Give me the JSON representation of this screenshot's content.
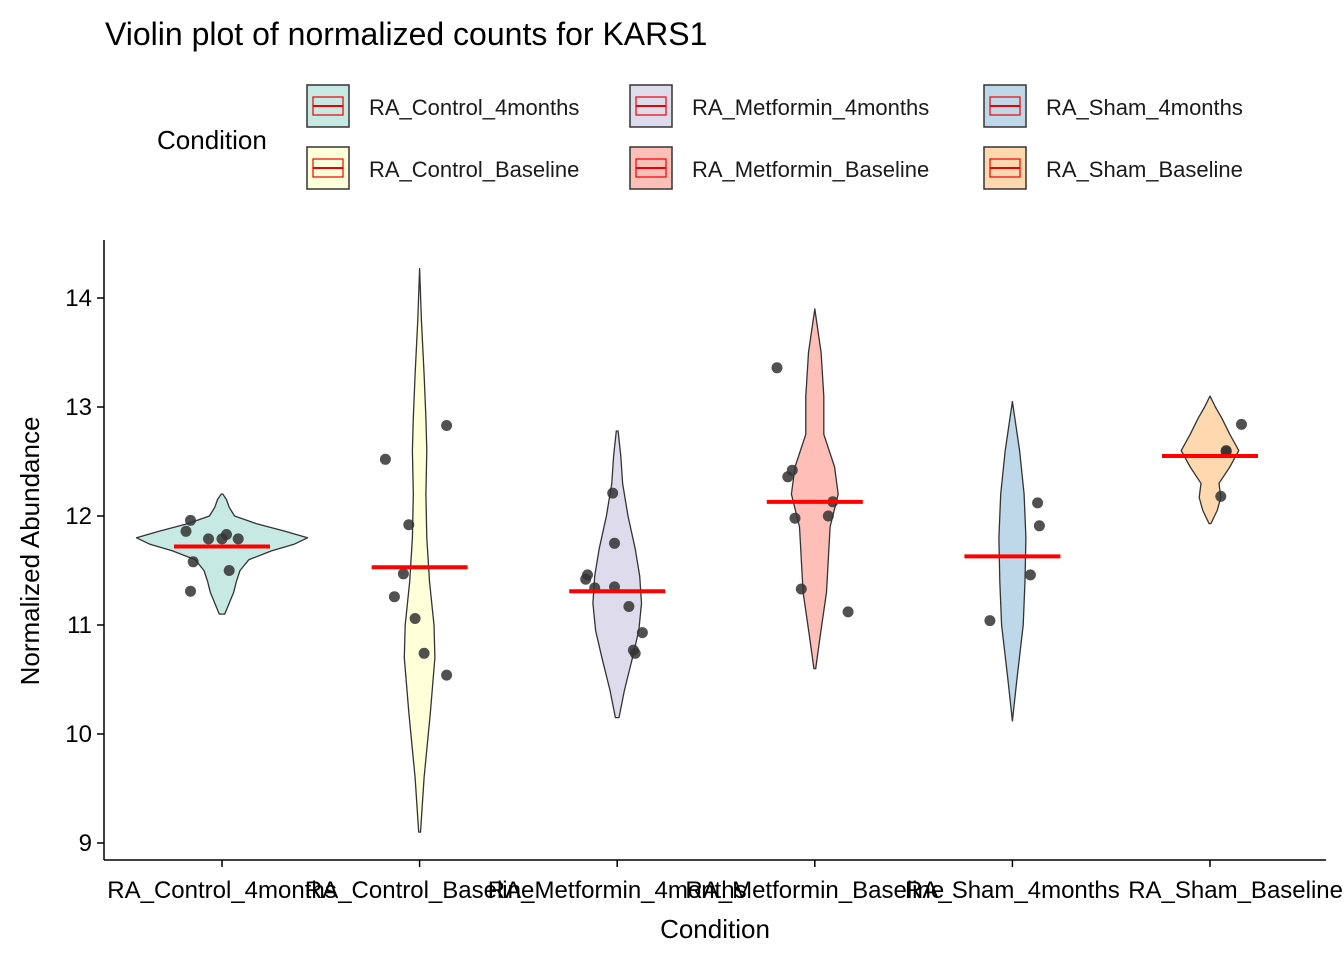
{
  "chart_data": {
    "type": "violin",
    "title": "Violin plot of normalized counts for KARS1",
    "xlabel": "Condition",
    "ylabel": "Normalized Abundance",
    "ylim": [
      8.9,
      14.5
    ],
    "yticks": [
      9,
      10,
      11,
      12,
      13,
      14
    ],
    "legend": {
      "title": "Condition",
      "position": "top",
      "entries": [
        {
          "name": "RA_Control_4months",
          "color": "#8DD3C7"
        },
        {
          "name": "RA_Metformin_4months",
          "color": "#BEBADA"
        },
        {
          "name": "RA_Sham_4months",
          "color": "#80B1D3"
        },
        {
          "name": "RA_Control_Baseline",
          "color": "#FFFFB3"
        },
        {
          "name": "RA_Metformin_Baseline",
          "color": "#FB8072"
        },
        {
          "name": "RA_Sham_Baseline",
          "color": "#FDB462"
        }
      ]
    },
    "median_line_color": "#FF0000",
    "point_color": "#333333",
    "categories": [
      "RA_Control_4months",
      "RA_Control_Baseline",
      "RA_Metformin_4months",
      "RA_Metformin_Baseline",
      "RA_Sham_4months",
      "RA_Sham_Baseline"
    ],
    "groups": [
      {
        "name": "RA_Control_4months",
        "color": "#8DD3C7",
        "median": 11.72,
        "points": [
          [
            -0.4,
            11.86
          ],
          [
            -0.35,
            11.96
          ],
          [
            -0.32,
            11.58
          ],
          [
            -0.35,
            11.31
          ],
          [
            -0.15,
            11.79
          ],
          [
            0.0,
            11.79
          ],
          [
            0.05,
            11.83
          ],
          [
            0.08,
            11.5
          ],
          [
            0.18,
            11.79
          ]
        ],
        "density": [
          [
            11.1,
            0.03
          ],
          [
            11.2,
            0.08
          ],
          [
            11.3,
            0.13
          ],
          [
            11.4,
            0.16
          ],
          [
            11.5,
            0.2
          ],
          [
            11.6,
            0.3
          ],
          [
            11.68,
            0.55
          ],
          [
            11.74,
            0.8
          ],
          [
            11.8,
            0.95
          ],
          [
            11.86,
            0.7
          ],
          [
            11.93,
            0.38
          ],
          [
            12.0,
            0.14
          ],
          [
            12.08,
            0.08
          ],
          [
            12.15,
            0.05
          ],
          [
            12.2,
            0.01
          ]
        ]
      },
      {
        "name": "RA_Control_Baseline",
        "color": "#FFFFB3",
        "median": 11.53,
        "points": [
          [
            -0.38,
            12.52
          ],
          [
            -0.28,
            11.26
          ],
          [
            -0.18,
            11.47
          ],
          [
            -0.12,
            11.92
          ],
          [
            -0.05,
            11.06
          ],
          [
            0.05,
            10.74
          ],
          [
            0.3,
            12.83
          ],
          [
            0.3,
            10.54
          ]
        ],
        "density": [
          [
            9.1,
            0.01
          ],
          [
            9.6,
            0.05
          ],
          [
            10.2,
            0.12
          ],
          [
            10.7,
            0.17
          ],
          [
            11.0,
            0.16
          ],
          [
            11.4,
            0.11
          ],
          [
            11.8,
            0.08
          ],
          [
            12.2,
            0.07
          ],
          [
            12.6,
            0.08
          ],
          [
            12.9,
            0.07
          ],
          [
            13.3,
            0.05
          ],
          [
            13.8,
            0.02
          ],
          [
            14.27,
            0.0
          ]
        ]
      },
      {
        "name": "RA_Metformin_4months",
        "color": "#BEBADA",
        "median": 11.31,
        "points": [
          [
            -0.35,
            11.42
          ],
          [
            -0.33,
            11.46
          ],
          [
            -0.25,
            11.34
          ],
          [
            -0.05,
            12.21
          ],
          [
            -0.03,
            11.75
          ],
          [
            -0.03,
            11.35
          ],
          [
            0.13,
            11.17
          ],
          [
            0.18,
            10.77
          ],
          [
            0.2,
            10.74
          ],
          [
            0.28,
            10.93
          ]
        ],
        "density": [
          [
            10.15,
            0.02
          ],
          [
            10.4,
            0.08
          ],
          [
            10.7,
            0.17
          ],
          [
            10.95,
            0.24
          ],
          [
            11.2,
            0.27
          ],
          [
            11.45,
            0.25
          ],
          [
            11.7,
            0.2
          ],
          [
            12.0,
            0.12
          ],
          [
            12.3,
            0.06
          ],
          [
            12.55,
            0.04
          ],
          [
            12.78,
            0.01
          ]
        ]
      },
      {
        "name": "RA_Metformin_Baseline",
        "color": "#FB8072",
        "median": 12.13,
        "points": [
          [
            -0.42,
            13.36
          ],
          [
            -0.3,
            12.36
          ],
          [
            -0.25,
            12.42
          ],
          [
            -0.22,
            11.98
          ],
          [
            -0.15,
            11.33
          ],
          [
            0.15,
            12.0
          ],
          [
            0.2,
            12.13
          ],
          [
            0.37,
            11.12
          ]
        ],
        "density": [
          [
            10.6,
            0.01
          ],
          [
            10.9,
            0.06
          ],
          [
            11.3,
            0.13
          ],
          [
            11.6,
            0.15
          ],
          [
            11.9,
            0.17
          ],
          [
            12.2,
            0.26
          ],
          [
            12.45,
            0.22
          ],
          [
            12.75,
            0.1
          ],
          [
            13.1,
            0.1
          ],
          [
            13.5,
            0.07
          ],
          [
            13.9,
            0.0
          ]
        ]
      },
      {
        "name": "RA_Sham_4months",
        "color": "#80B1D3",
        "median": 11.63,
        "points": [
          [
            -0.25,
            11.04
          ],
          [
            0.2,
            11.46
          ],
          [
            0.28,
            12.12
          ],
          [
            0.3,
            11.91
          ]
        ],
        "density": [
          [
            10.12,
            0.0
          ],
          [
            10.5,
            0.05
          ],
          [
            11.0,
            0.12
          ],
          [
            11.4,
            0.14
          ],
          [
            11.8,
            0.15
          ],
          [
            12.2,
            0.13
          ],
          [
            12.6,
            0.08
          ],
          [
            13.05,
            0.0
          ]
        ]
      },
      {
        "name": "RA_Sham_Baseline",
        "color": "#FDB462",
        "median": 12.55,
        "points": [
          [
            0.12,
            12.18
          ],
          [
            0.18,
            12.6
          ],
          [
            0.18,
            12.59
          ],
          [
            0.35,
            12.84
          ]
        ],
        "density": [
          [
            11.93,
            0.01
          ],
          [
            12.05,
            0.08
          ],
          [
            12.17,
            0.12
          ],
          [
            12.3,
            0.1
          ],
          [
            12.45,
            0.22
          ],
          [
            12.6,
            0.32
          ],
          [
            12.75,
            0.22
          ],
          [
            12.9,
            0.13
          ],
          [
            13.0,
            0.06
          ],
          [
            13.1,
            0.0
          ]
        ]
      }
    ]
  }
}
